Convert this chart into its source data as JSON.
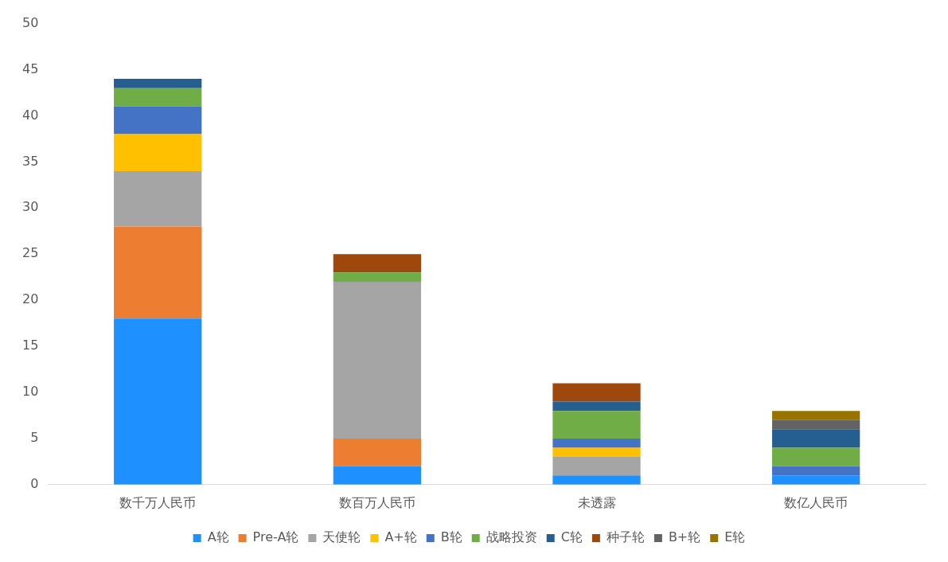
{
  "chart_data": {
    "type": "bar",
    "stacked": true,
    "categories": [
      "数千万人民币",
      "数百万人民币",
      "未透露",
      "数亿人民币"
    ],
    "ylim": [
      0,
      50
    ],
    "yticks": [
      0,
      5,
      10,
      15,
      20,
      25,
      30,
      35,
      40,
      45,
      50
    ],
    "grid": false,
    "legend": "bottom",
    "series": [
      {
        "name": "A轮",
        "color": "#1e90ff",
        "values": [
          18,
          2,
          1,
          1
        ]
      },
      {
        "name": "Pre-A轮",
        "color": "#ed7d31",
        "values": [
          10,
          3,
          null,
          null
        ]
      },
      {
        "name": "天使轮",
        "color": "#a5a5a5",
        "values": [
          6,
          17,
          2,
          null
        ]
      },
      {
        "name": "A+轮",
        "color": "#ffc000",
        "values": [
          4,
          null,
          1,
          null
        ]
      },
      {
        "name": "B轮",
        "color": "#4472c4",
        "values": [
          3,
          null,
          1,
          1
        ]
      },
      {
        "name": "战略投资",
        "color": "#70ad47",
        "values": [
          2,
          1,
          3,
          2
        ]
      },
      {
        "name": "C轮",
        "color": "#255e91",
        "values": [
          1,
          null,
          1,
          2
        ]
      },
      {
        "name": "种子轮",
        "color": "#9e480e",
        "values": [
          null,
          2,
          2,
          null
        ]
      },
      {
        "name": "B+轮",
        "color": "#636363",
        "values": [
          null,
          null,
          null,
          1
        ]
      },
      {
        "name": "E轮",
        "color": "#997300",
        "values": [
          null,
          null,
          null,
          1
        ]
      }
    ]
  }
}
